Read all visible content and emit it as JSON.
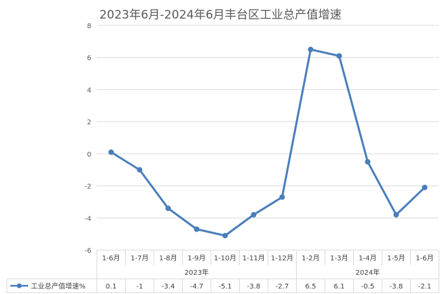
{
  "chart_data": {
    "type": "line",
    "title": "2023年6月-2024年6月丰台区工业总产值增速",
    "categories": [
      "1-6月",
      "1-7月",
      "1-8月",
      "1-9月",
      "1-10月",
      "1-11月",
      "1-12月",
      "1-2月",
      "1-3月",
      "1-4月",
      "1-5月",
      "1-6月"
    ],
    "groups": [
      {
        "label": "2023年",
        "start": 0,
        "end": 6
      },
      {
        "label": "2024年",
        "start": 7,
        "end": 11
      }
    ],
    "series": [
      {
        "name": "工业总产值增速%",
        "values": [
          0.1,
          -1,
          -3.4,
          -4.7,
          -5.1,
          -3.8,
          -2.7,
          6.5,
          6.1,
          -0.5,
          -3.8,
          -2.1
        ]
      }
    ],
    "value_labels": [
      "0.1",
      "-1",
      "-3.4",
      "-4.7",
      "-5.1",
      "-3.8",
      "-2.7",
      "6.5",
      "6.1",
      "-0.5",
      "-3.8",
      "-2.1"
    ],
    "ylim": [
      -6,
      8
    ],
    "yticks": [
      "-6",
      "-4",
      "-2",
      "0",
      "2",
      "4",
      "6",
      "8"
    ],
    "grid": true,
    "legend": "bottom-left data table",
    "colors": {
      "series": "#4A7EBB",
      "grid": "#D9D9D9",
      "text": "#595959"
    }
  }
}
